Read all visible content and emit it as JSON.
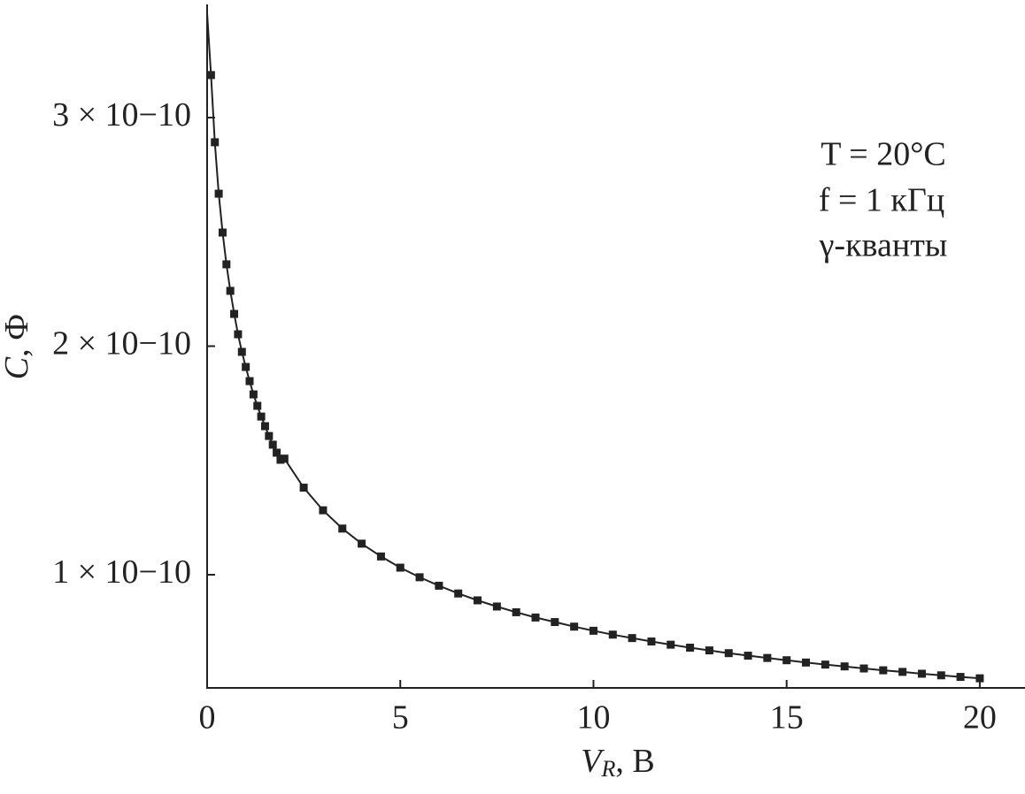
{
  "chart_data": {
    "type": "line",
    "xlabel": "VR, В",
    "ylabel": "C, Ф",
    "annotations": [
      "T = 20°C",
      "f = 1 кГц",
      "γ-кванты"
    ],
    "color": "#222222",
    "x": [
      0,
      0.1,
      0.2,
      0.3,
      0.4,
      0.5,
      0.6,
      0.7,
      0.8,
      0.9,
      1.0,
      1.1,
      1.2,
      1.3,
      1.4,
      1.5,
      1.6,
      1.7,
      1.8,
      1.9,
      2.0,
      2.5,
      3.0,
      3.5,
      4.0,
      4.5,
      5.0,
      5.5,
      6.0,
      6.5,
      7.0,
      7.5,
      8.0,
      8.5,
      9.0,
      9.5,
      10.0,
      10.5,
      11.0,
      11.5,
      12.0,
      12.5,
      13.0,
      13.5,
      14.0,
      14.5,
      15.0,
      15.5,
      16.0,
      16.5,
      17.0,
      17.5,
      18.0,
      18.5,
      19.0,
      19.5,
      20.0
    ],
    "values": [
      3.456e-10,
      3.186e-10,
      2.892e-10,
      2.667e-10,
      2.497e-10,
      2.358e-10,
      2.242e-10,
      2.141e-10,
      2.052e-10,
      1.975e-10,
      1.909e-10,
      1.847e-10,
      1.789e-10,
      1.739e-10,
      1.692e-10,
      1.65e-10,
      1.607e-10,
      1.569e-10,
      1.534e-10,
      1.503e-10,
      1.508e-10,
      1.381e-10,
      1.282e-10,
      1.202e-10,
      1.136e-10,
      1.08e-10,
      1.031e-10,
      9.89e-11,
      9.52e-11,
      9.18e-11,
      8.88e-11,
      8.61e-11,
      8.36e-11,
      8.13e-11,
      7.93e-11,
      7.73e-11,
      7.55e-11,
      7.38e-11,
      7.23e-11,
      7.08e-11,
      6.94e-11,
      6.81e-11,
      6.69e-11,
      6.57e-11,
      6.46e-11,
      6.36e-11,
      6.26e-11,
      6.16e-11,
      6.07e-11,
      5.99e-11,
      5.9e-11,
      5.82e-11,
      5.75e-11,
      5.67e-11,
      5.6e-11,
      5.53e-11,
      5.47e-11
    ],
    "xlim": [
      0,
      21.17
    ],
    "xticks": [
      0,
      5,
      10,
      15,
      20
    ],
    "ylim": [
      5.05e-11,
      3.495e-10
    ],
    "yticks": [
      {
        "value": 1e-10,
        "label": "1 × 10−10"
      },
      {
        "value": 2e-10,
        "label": "2 × 10−10"
      },
      {
        "value": 3e-10,
        "label": "3 × 10−10"
      }
    ],
    "grid": false
  }
}
